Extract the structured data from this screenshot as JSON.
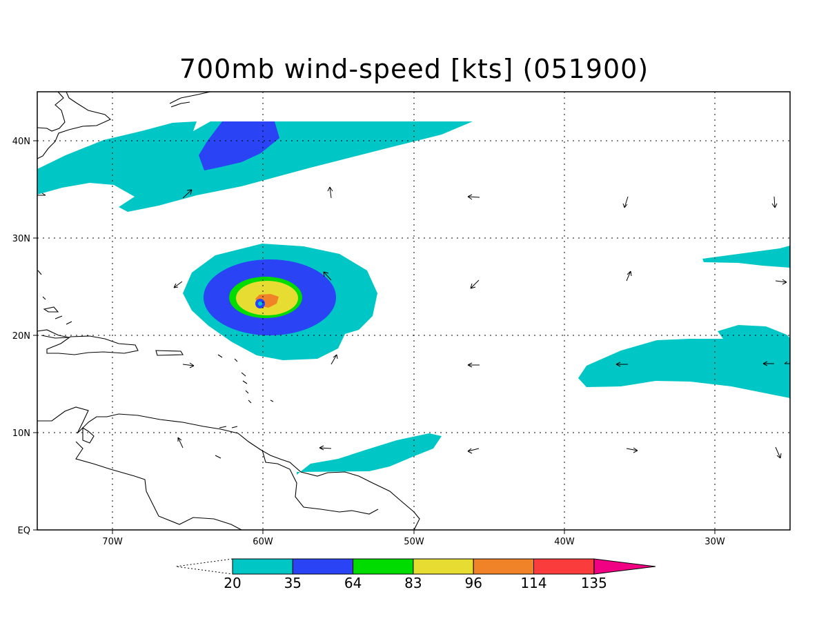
{
  "title": "700mb wind-speed [kts] (051900)",
  "x_tick_labels": [
    "70W",
    "60W",
    "50W",
    "40W",
    "30W"
  ],
  "y_tick_labels": [
    "EQ",
    "10N",
    "20N",
    "30N",
    "40N"
  ],
  "colorbar": {
    "levels": [
      "20",
      "35",
      "64",
      "83",
      "96",
      "114",
      "135"
    ],
    "colors": [
      "#00c6c6",
      "#2a43f5",
      "#00dc00",
      "#e6dc32",
      "#f08228",
      "#fa3c3c",
      "#f00082"
    ]
  },
  "chart_data": {
    "type": "heatmap",
    "title": "700mb wind-speed [kts] (051900)",
    "xlim": [
      -75,
      -25
    ],
    "ylim": [
      0,
      45
    ],
    "x_ticks": [
      -70,
      -60,
      -50,
      -40,
      -30
    ],
    "y_ticks": [
      0,
      10,
      20,
      30,
      40
    ],
    "grid": true,
    "contour_levels": [
      20,
      35,
      64,
      83,
      96,
      114,
      135
    ],
    "hurricane_center": {
      "lon": -60.2,
      "lat": 23.3
    },
    "colors": {
      "land_outline": "#000000",
      "background": "#ffffff"
    }
  }
}
